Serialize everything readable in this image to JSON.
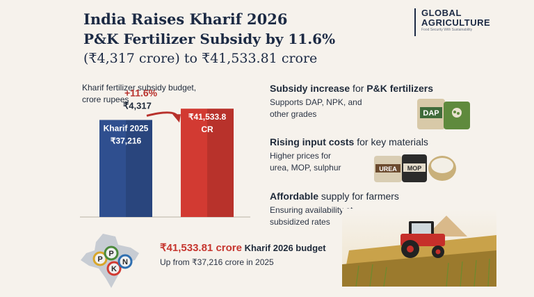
{
  "title": {
    "line1": "India Raises Kharif 2026",
    "line2": "P&K Fertilizer Subsidy by 11.6%",
    "line3": "(₹4,317 crore) to ₹41,533.81 crore"
  },
  "brand": {
    "name_line1": "GLOBAL",
    "name_line2": "AGRICULTURE",
    "tagline": "Food Security With Sustainability"
  },
  "chart_label": {
    "line1": "Kharif fertilizer subsidy budget,",
    "line2": "crore rupees"
  },
  "chart_data": {
    "type": "bar",
    "title": "Kharif fertilizer subsidy budget, crore rupees",
    "categories": [
      "Kharif 2025",
      "Kharif 2026"
    ],
    "values": [
      37216,
      41533.81
    ],
    "bar_labels": [
      [
        "Kharif 2025",
        "₹37,216"
      ],
      [
        "₹41,533.8",
        "CR"
      ]
    ],
    "annotation": {
      "percent": "+11.6%",
      "amount": "₹4,317"
    },
    "colors": [
      "#2f4f8f",
      "#d23a32"
    ],
    "ylim": [
      0,
      44000
    ]
  },
  "sections": [
    {
      "head_bold": "Subsidy increase",
      "head_rest": " for ",
      "head_bold2": "P&K fertilizers",
      "body": [
        "Supports DAP, NPK, and",
        "other grades"
      ]
    },
    {
      "head_bold": "Rising input costs",
      "head_rest": " for key materials",
      "head_bold2": "",
      "body": [
        "Higher prices for",
        "urea, MOP, sulphur"
      ]
    },
    {
      "head_bold": "Affordable",
      "head_rest": " supply for farmers",
      "head_bold2": "",
      "body": [
        "Ensuring availability at",
        "subsidized rates"
      ]
    }
  ],
  "bags": {
    "dap": "DAP",
    "urea": "UREA",
    "mop": "MOP"
  },
  "map_letters": [
    "P",
    "P",
    "K",
    "N"
  ],
  "budget": {
    "amount": "₹41,533.81 crore",
    "label": " Kharif 2026 budget",
    "sub": "Up from ₹37,216 crore in 2025"
  },
  "colors": {
    "navy": "#1c2a44",
    "red": "#d23a32",
    "blue": "#2f4f8f",
    "bg": "#f6f2ec"
  }
}
